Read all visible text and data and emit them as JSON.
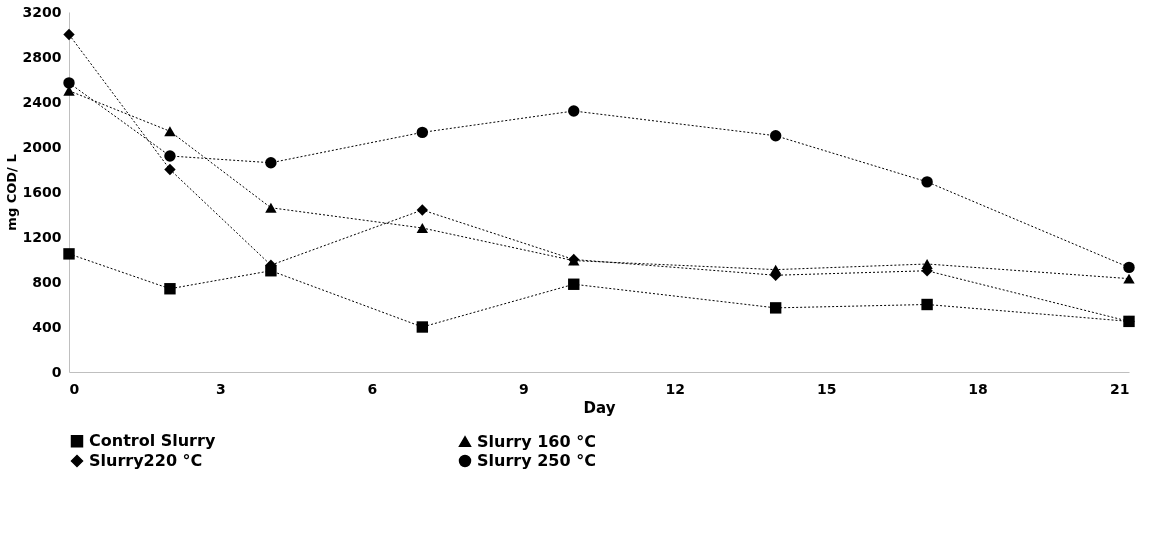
{
  "chart_data": {
    "type": "line",
    "xlabel": "Day",
    "ylabel": "mg  COD/ L",
    "x": [
      0,
      2,
      4,
      7,
      10,
      14,
      17,
      21
    ],
    "xlim": [
      0,
      21
    ],
    "xticks": [
      0,
      3,
      6,
      9,
      12,
      15,
      18,
      21
    ],
    "ylim": [
      0,
      3200
    ],
    "yticks": [
      0,
      400,
      800,
      1200,
      1600,
      2000,
      2400,
      2800,
      3200
    ],
    "grid": false,
    "legend": "bottom",
    "line_style": "dotted",
    "series": [
      {
        "name": "Control Slurry",
        "color": "#000000",
        "marker": "square",
        "values": [
          1050,
          740,
          900,
          400,
          780,
          570,
          600,
          450
        ]
      },
      {
        "name": "Slurry 160 °C",
        "color": "#000000",
        "marker": "triangle",
        "values": [
          2500,
          2140,
          1460,
          1280,
          990,
          910,
          960,
          830
        ]
      },
      {
        "name": "Slurry220 °C",
        "color": "#000000",
        "marker": "diamond",
        "values": [
          3000,
          1800,
          950,
          1440,
          1000,
          860,
          900,
          450
        ]
      },
      {
        "name": "Slurry 250 °C",
        "color": "#000000",
        "marker": "circle",
        "values": [
          2570,
          1920,
          1860,
          2130,
          2320,
          2100,
          1690,
          930
        ]
      }
    ]
  }
}
